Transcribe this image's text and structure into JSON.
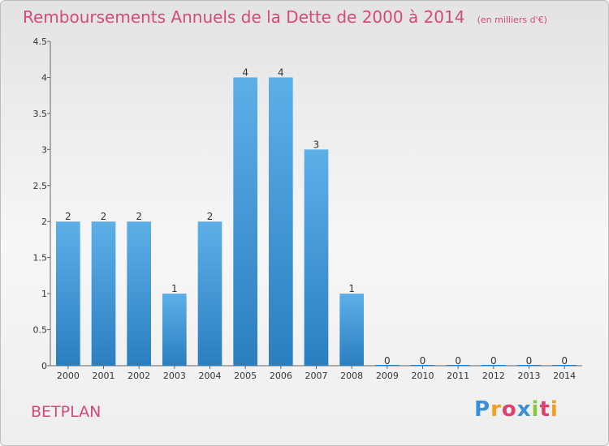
{
  "title": "Remboursements Annuels de la Dette de 2000 à 2014",
  "unit_label": "(en milliers d'€)",
  "commune": "BETPLAN",
  "logo": {
    "letters": [
      "P",
      "r",
      "o",
      "x",
      "i",
      "t",
      "i"
    ],
    "colors": [
      "#3a8fd8",
      "#f0a020",
      "#e04070",
      "#3a8fd8",
      "#8cc63f",
      "#e04070",
      "#f0a020"
    ]
  },
  "colors": {
    "bar_top": "#5dafe8",
    "bar_bottom": "#2a7fc0",
    "title": "#d64a78"
  },
  "chart_data": {
    "type": "bar",
    "title": "Remboursements Annuels de la Dette de 2000 à 2014",
    "xlabel": "",
    "ylabel": "",
    "categories": [
      "2000",
      "2001",
      "2002",
      "2003",
      "2004",
      "2005",
      "2006",
      "2007",
      "2008",
      "2009",
      "2010",
      "2011",
      "2012",
      "2013",
      "2014"
    ],
    "values": [
      2,
      2,
      2,
      1,
      2,
      4,
      4,
      3,
      1,
      0,
      0,
      0,
      0,
      0,
      0
    ],
    "data_labels": [
      "2",
      "2",
      "2",
      "1",
      "2",
      "4",
      "4",
      "3",
      "1",
      "0",
      "0",
      "0",
      "0",
      "0",
      "0"
    ],
    "ylim": [
      0,
      4.5
    ],
    "yticks": [
      0,
      0.5,
      1,
      1.5,
      2,
      2.5,
      3,
      3.5,
      4,
      4.5
    ],
    "ytick_labels": [
      "0",
      "0.5",
      "1",
      "1.5",
      "2",
      "2.5",
      "3",
      "3.5",
      "4",
      "4.5"
    ],
    "grid": false,
    "legend": "none"
  }
}
